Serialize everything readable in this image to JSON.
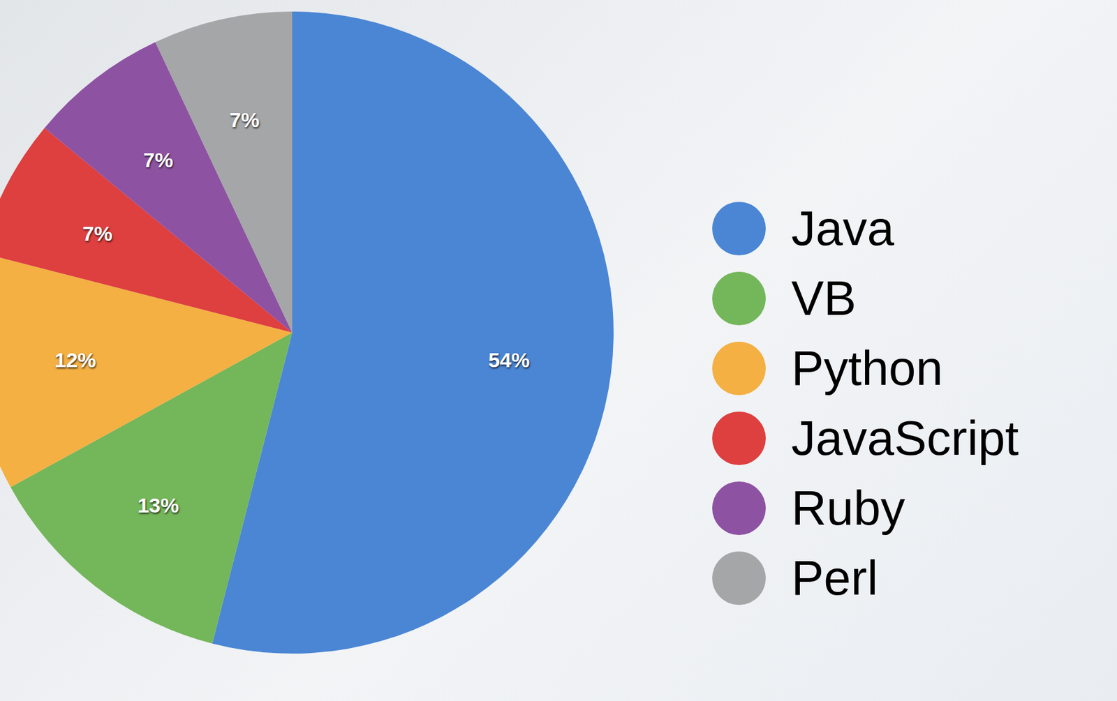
{
  "chart_data": {
    "type": "pie",
    "categories": [
      "Java",
      "VB",
      "Python",
      "JavaScript",
      "Ruby",
      "Perl"
    ],
    "values": [
      54,
      13,
      12,
      7,
      7,
      7
    ],
    "value_labels": [
      "54%",
      "13%",
      "12%",
      "7%",
      "7%",
      "7%"
    ],
    "colors": [
      "#4a86d4",
      "#74b65a",
      "#f4b042",
      "#de3f3f",
      "#8e52a2",
      "#a4a6a8"
    ],
    "data_labels": true,
    "legend": "right"
  }
}
